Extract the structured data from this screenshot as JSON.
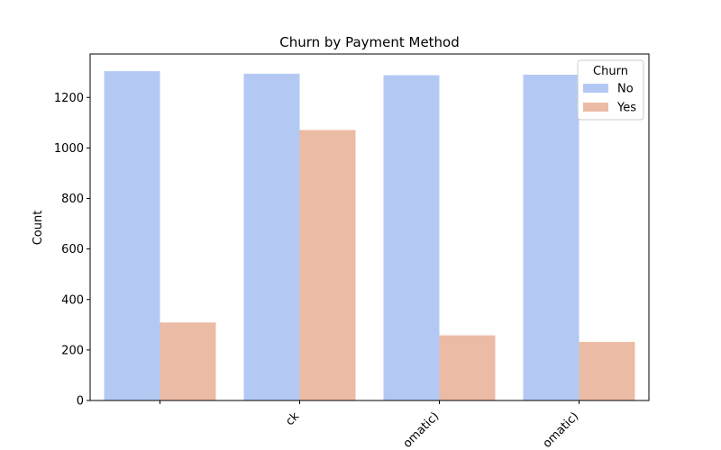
{
  "chart_data": {
    "type": "bar",
    "title": "Churn by Payment Method",
    "xlabel": "",
    "ylabel": "Count",
    "categories": [
      "",
      "ck",
      "omatic)",
      "omatic)"
    ],
    "series": [
      {
        "name": "No",
        "values": [
          1304,
          1294,
          1288,
          1290
        ],
        "color": "#b3c9f4"
      },
      {
        "name": "Yes",
        "values": [
          309,
          1071,
          258,
          232
        ],
        "color": "#ecbba5"
      }
    ],
    "ylim": [
      0,
      1372
    ],
    "yticks": [
      0,
      200,
      400,
      600,
      800,
      1000,
      1200
    ],
    "legend": {
      "title": "Churn",
      "placement": "top-right"
    },
    "grid": false
  }
}
